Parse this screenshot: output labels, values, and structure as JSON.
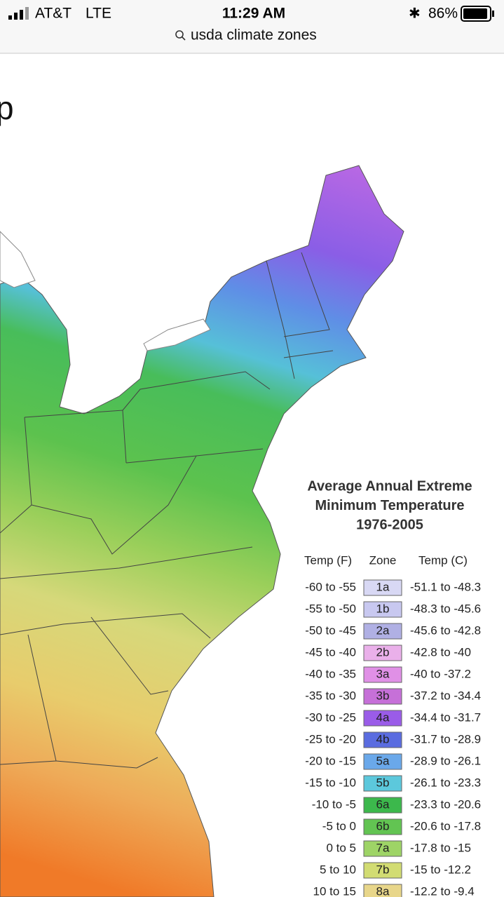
{
  "status_bar": {
    "carrier": "AT&T",
    "network": "LTE",
    "time": "11:29 AM",
    "battery": "86%"
  },
  "address_bar": {
    "query": "usda climate zones"
  },
  "page": {
    "title_fragment": "p"
  },
  "legend": {
    "title": [
      "Average Annual Extreme",
      "Minimum Temperature",
      "1976-2005"
    ],
    "header": [
      "Temp (F)",
      "Zone",
      "Temp (C)"
    ],
    "rows": [
      {
        "temp_f": "-60 to -55",
        "zone": "1a",
        "temp_c": "-51.1 to -48.3",
        "color": "#d8d8f4"
      },
      {
        "temp_f": "-55 to -50",
        "zone": "1b",
        "temp_c": "-48.3 to -45.6",
        "color": "#c8c8f0"
      },
      {
        "temp_f": "-50 to -45",
        "zone": "2a",
        "temp_c": "-45.6 to -42.8",
        "color": "#b0b0e4"
      },
      {
        "temp_f": "-45 to -40",
        "zone": "2b",
        "temp_c": "-42.8 to -40",
        "color": "#eab0ea"
      },
      {
        "temp_f": "-40 to -35",
        "zone": "3a",
        "temp_c": "-40 to -37.2",
        "color": "#e090e6"
      },
      {
        "temp_f": "-35 to -30",
        "zone": "3b",
        "temp_c": "-37.2 to -34.4",
        "color": "#c670d8"
      },
      {
        "temp_f": "-30 to -25",
        "zone": "4a",
        "temp_c": "-34.4 to -31.7",
        "color": "#9a5ce8"
      },
      {
        "temp_f": "-25 to -20",
        "zone": "4b",
        "temp_c": "-31.7 to -28.9",
        "color": "#5a6ce0"
      },
      {
        "temp_f": "-20 to -15",
        "zone": "5a",
        "temp_c": "-28.9 to -26.1",
        "color": "#6aa8ea"
      },
      {
        "temp_f": "-15 to -10",
        "zone": "5b",
        "temp_c": "-26.1 to -23.3",
        "color": "#5cc8dc"
      },
      {
        "temp_f": "-10 to -5",
        "zone": "6a",
        "temp_c": "-23.3 to -20.6",
        "color": "#3cb84c"
      },
      {
        "temp_f": "-5 to 0",
        "zone": "6b",
        "temp_c": "-20.6 to -17.8",
        "color": "#62c452"
      },
      {
        "temp_f": "0 to 5",
        "zone": "7a",
        "temp_c": "-17.8 to -15",
        "color": "#9ed466"
      },
      {
        "temp_f": "5 to 10",
        "zone": "7b",
        "temp_c": "-15 to -12.2",
        "color": "#d2dc72"
      },
      {
        "temp_f": "10 to 15",
        "zone": "8a",
        "temp_c": "-12.2 to -9.4",
        "color": "#e8d68a"
      }
    ]
  }
}
